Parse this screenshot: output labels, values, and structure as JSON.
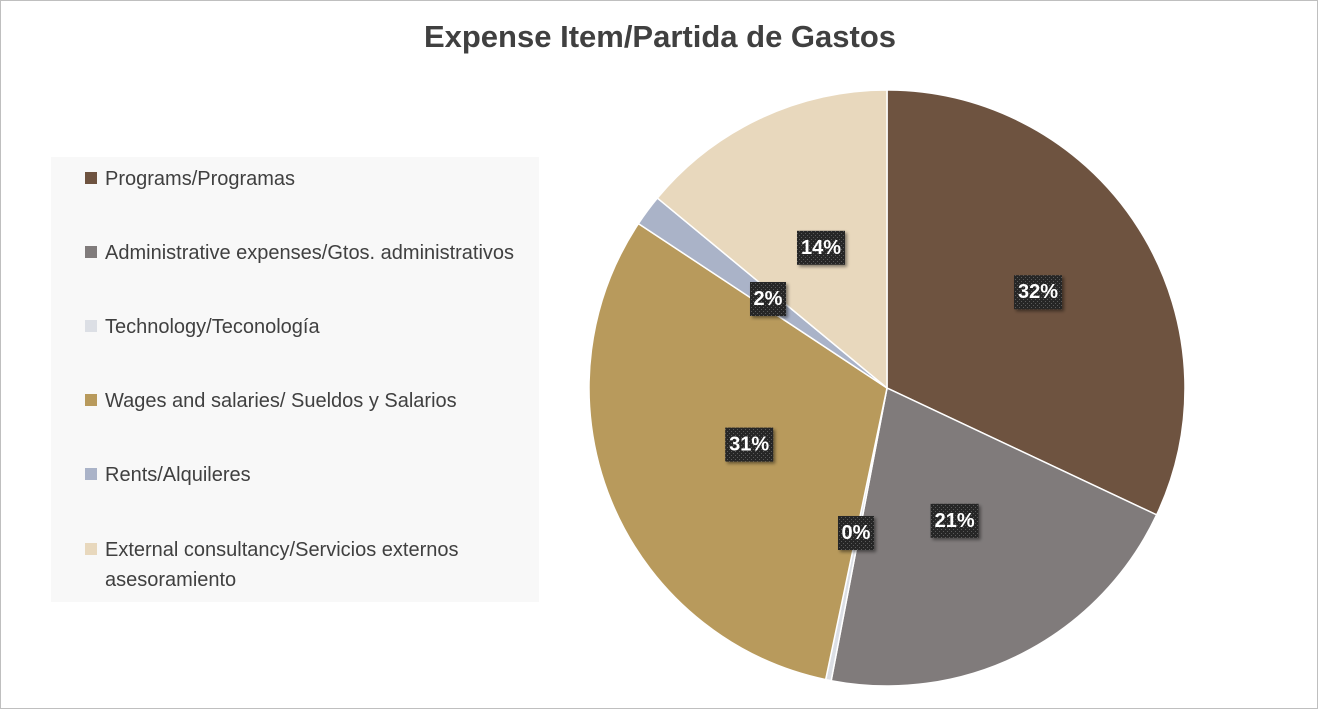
{
  "chart_data": {
    "type": "pie",
    "title": "Expense Item/Partida de Gastos",
    "legend_position": "left",
    "slices": [
      {
        "name": "Programs/Programas",
        "value": 32,
        "label": "32%",
        "color": "#6e5340"
      },
      {
        "name": "Administrative expenses/Gtos. administrativos",
        "value": 21,
        "label": "21%",
        "color": "#807b7b"
      },
      {
        "name": "Technology/Teconología",
        "value": 0.3,
        "label": "0%",
        "color": "#dcdfe5"
      },
      {
        "name": "Wages and salaries/ Sueldos y Salarios",
        "value": 31,
        "label": "31%",
        "color": "#b89a5c"
      },
      {
        "name": "Rents/Alquileres",
        "value": 1.7,
        "label": "2%",
        "color": "#aab3c8"
      },
      {
        "name": "External consultancy/Servicios externos asesoramiento",
        "value": 14,
        "label": "14%",
        "color": "#e8d8bd"
      }
    ]
  },
  "legend": {
    "items": [
      {
        "label": "Programs/Programas",
        "color": "#6e5340"
      },
      {
        "label": "Administrative expenses/Gtos. administrativos",
        "color": "#807b7b"
      },
      {
        "label": "Technology/Teconología",
        "color": "#dcdfe5"
      },
      {
        "label": "Wages and salaries/ Sueldos y Salarios",
        "color": "#b89a5c"
      },
      {
        "label": "Rents/Alquileres",
        "color": "#aab3c8"
      },
      {
        "label": "External consultancy/Servicios externos asesoramiento",
        "color": "#e8d8bd"
      }
    ]
  }
}
